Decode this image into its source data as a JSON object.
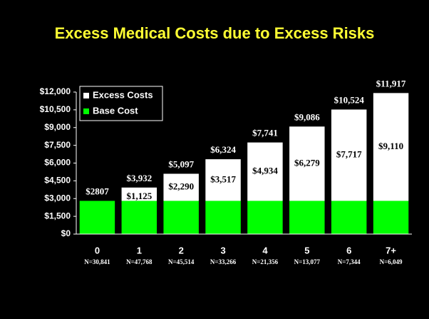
{
  "chart_data": {
    "type": "stacked_bar",
    "title": "Excess Medical Costs due to Excess Risks",
    "categories": [
      "0",
      "1",
      "2",
      "3",
      "4",
      "5",
      "6",
      "7+"
    ],
    "sample_sizes": [
      "N=30,841",
      "N=47,768",
      "N=45,514",
      "N=33,266",
      "N=21,356",
      "N=13,077",
      "N=7,344",
      "N=6,049"
    ],
    "series": [
      {
        "name": "Base Cost",
        "color": "#00ff00",
        "values": [
          2807,
          2807,
          2807,
          2807,
          2807,
          2807,
          2807,
          2807
        ]
      },
      {
        "name": "Excess Costs",
        "color": "#ffffff",
        "values": [
          null,
          1125,
          2290,
          3517,
          4934,
          6279,
          7717,
          9110
        ],
        "value_labels": [
          null,
          "$1,125",
          "$2,290",
          "$3,517",
          "$4,934",
          "$6,279",
          "$7,717",
          "$9,110"
        ]
      }
    ],
    "totals": [
      2807,
      3932,
      5097,
      6324,
      7741,
      9086,
      10524,
      11917
    ],
    "total_labels": [
      "$2807",
      "$3,932",
      "$5,097",
      "$6,324",
      "$7,741",
      "$9,086",
      "$10,524",
      "$11,917"
    ],
    "ylim": [
      0,
      12000
    ],
    "yticks": [
      {
        "value": 0,
        "label": "$0"
      },
      {
        "value": 1500,
        "label": "$1,500"
      },
      {
        "value": 3000,
        "label": "$3,000"
      },
      {
        "value": 4500,
        "label": "$4,500"
      },
      {
        "value": 6000,
        "label": "$6,000"
      },
      {
        "value": 7500,
        "label": "$7,500"
      },
      {
        "value": 9000,
        "label": "$9,000"
      },
      {
        "value": 10500,
        "label": "$10,500"
      },
      {
        "value": 12000,
        "label": "$12,000"
      }
    ],
    "legend": "upper left",
    "grid": false
  }
}
